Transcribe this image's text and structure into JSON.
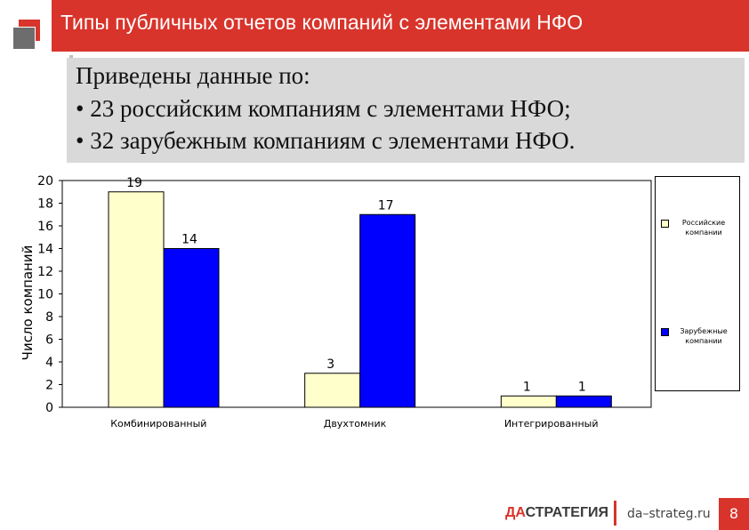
{
  "header": {
    "title": "Типы публичных отчетов компаний с элементами НФО"
  },
  "info": {
    "line1": "Приведены данные по:",
    "line2": "• 23 российским компаниям с элементами НФО;",
    "line3": "• 32 зарубежным компаниям с элементами НФО."
  },
  "chart_data": {
    "type": "bar",
    "categories": [
      "Комбинированный",
      "Двухтомник",
      "Интегрированный"
    ],
    "series": [
      {
        "name": "Российские компании",
        "values": [
          19,
          3,
          1
        ],
        "color": "#ffffcc"
      },
      {
        "name": "Зарубежные компании",
        "values": [
          14,
          17,
          1
        ],
        "color": "#0000ff"
      }
    ],
    "ylabel": "Число компаний",
    "ylim": [
      0,
      20
    ],
    "yticks": [
      0,
      2,
      4,
      6,
      8,
      10,
      12,
      14,
      16,
      18,
      20
    ],
    "grid": false,
    "legend": "right"
  },
  "footer": {
    "logo_da": "ДА",
    "logo_rest": "СТРАТЕГИЯ",
    "site": "da–strateg.ru",
    "page": "8"
  },
  "colors": {
    "accent": "#d8342b"
  }
}
